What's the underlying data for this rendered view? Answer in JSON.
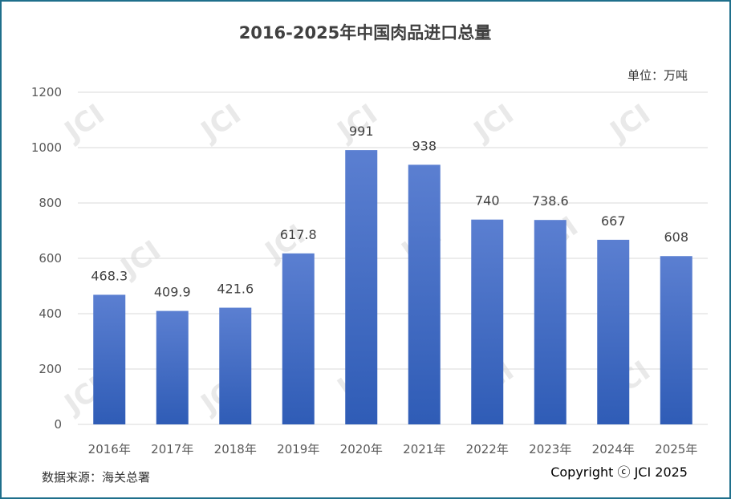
{
  "chart_data": {
    "type": "bar",
    "title": "2016-2025年中国肉品进口总量",
    "unit_label": "单位：万吨",
    "categories": [
      "2016年",
      "2017年",
      "2018年",
      "2019年",
      "2020年",
      "2021年",
      "2022年",
      "2023年",
      "2024年",
      "2025年"
    ],
    "values": [
      468.3,
      409.9,
      421.6,
      617.8,
      991,
      938,
      740,
      738.6,
      667,
      608
    ],
    "value_labels": [
      "468.3",
      "409.9",
      "421.6",
      "617.8",
      "991",
      "938",
      "740",
      "738.6",
      "667",
      "608"
    ],
    "ylim": [
      0,
      1200
    ],
    "yticks": [
      0,
      200,
      400,
      600,
      800,
      1000,
      1200
    ],
    "xlabel": "",
    "ylabel": "",
    "grid": true,
    "legend": "none",
    "colors": {
      "bar_top": "#5b7fd1",
      "bar_bottom": "#2f5cb6",
      "grid": "#d9d9d9",
      "border": "#1f6f8b"
    }
  },
  "footer": {
    "source": "数据来源：海关总署",
    "copyright": "Copyright ⓒ JCI  2025"
  },
  "watermark": "JCI"
}
